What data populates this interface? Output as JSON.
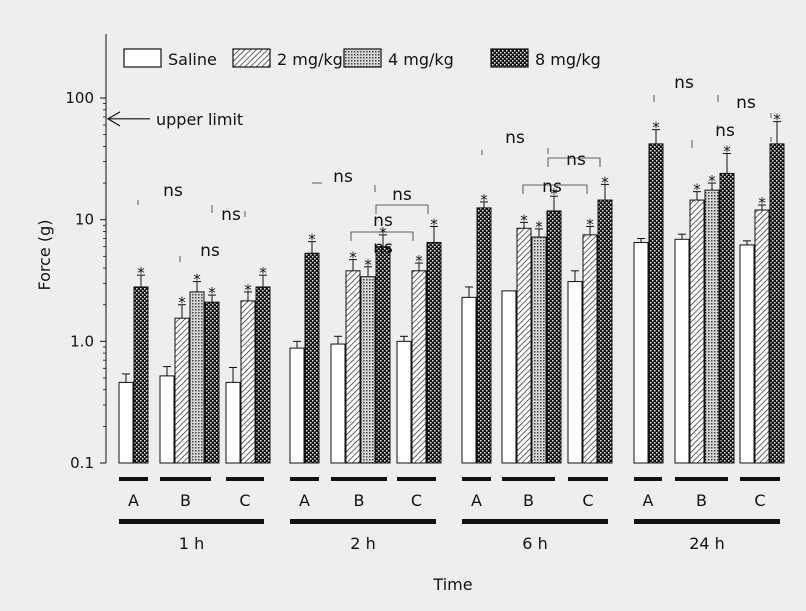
{
  "chart_data": {
    "type": "bar",
    "ylabel": "Force (g)",
    "xlabel": "Time",
    "yscale": "log",
    "ylim": [
      0.1,
      300
    ],
    "yticks": [
      {
        "value": 0.1,
        "label": "0.1"
      },
      {
        "value": 1,
        "label": "1.0"
      },
      {
        "value": 10,
        "label": "10"
      },
      {
        "value": 100,
        "label": "100"
      }
    ],
    "series": [
      {
        "name": "Saline",
        "pattern": "white"
      },
      {
        "name": "2 mg/kg",
        "pattern": "hatch"
      },
      {
        "name": "4 mg/kg",
        "pattern": "grid"
      },
      {
        "name": "8 mg/kg",
        "pattern": "check"
      }
    ],
    "upper_limit": {
      "value": 80,
      "label": "upper limit"
    },
    "significance_marker": "*",
    "ns_label": "ns",
    "time_points": [
      {
        "label": "1 h",
        "groups": [
          {
            "label": "A",
            "bars": [
              {
                "series": 0,
                "value": 0.46,
                "err": 0.08,
                "sig": false
              },
              {
                "series": 3,
                "value": 2.8,
                "err": 0.7,
                "sig": true
              }
            ]
          },
          {
            "label": "B",
            "bars": [
              {
                "series": 0,
                "value": 0.52,
                "err": 0.1,
                "sig": false
              },
              {
                "series": 1,
                "value": 1.55,
                "err": 0.45,
                "sig": true
              },
              {
                "series": 2,
                "value": 2.55,
                "err": 0.55,
                "sig": true
              },
              {
                "series": 3,
                "value": 2.1,
                "err": 0.3,
                "sig": true
              }
            ]
          },
          {
            "label": "C",
            "bars": [
              {
                "series": 0,
                "value": 0.46,
                "err": 0.15,
                "sig": false
              },
              {
                "series": 1,
                "value": 2.15,
                "err": 0.4,
                "sig": true
              },
              {
                "series": 3,
                "value": 2.8,
                "err": 0.7,
                "sig": true
              }
            ]
          }
        ]
      },
      {
        "label": "2 h",
        "groups": [
          {
            "label": "A",
            "bars": [
              {
                "series": 0,
                "value": 0.88,
                "err": 0.12,
                "sig": false
              },
              {
                "series": 3,
                "value": 5.3,
                "err": 1.3,
                "sig": true
              }
            ]
          },
          {
            "label": "B",
            "bars": [
              {
                "series": 0,
                "value": 0.95,
                "err": 0.15,
                "sig": false
              },
              {
                "series": 1,
                "value": 3.8,
                "err": 0.9,
                "sig": true
              },
              {
                "series": 2,
                "value": 3.4,
                "err": 0.7,
                "sig": true
              },
              {
                "series": 3,
                "value": 6.0,
                "err": 1.5,
                "sig": true
              }
            ]
          },
          {
            "label": "C",
            "bars": [
              {
                "series": 0,
                "value": 1.0,
                "err": 0.1,
                "sig": false
              },
              {
                "series": 1,
                "value": 3.8,
                "err": 0.6,
                "sig": true
              },
              {
                "series": 3,
                "value": 6.5,
                "err": 2.3,
                "sig": true
              }
            ]
          }
        ]
      },
      {
        "label": "6 h",
        "groups": [
          {
            "label": "A",
            "bars": [
              {
                "series": 0,
                "value": 2.3,
                "err": 0.5,
                "sig": false
              },
              {
                "series": 3,
                "value": 12.5,
                "err": 1.5,
                "sig": true
              }
            ]
          },
          {
            "label": "B",
            "bars": [
              {
                "series": 0,
                "value": 2.6,
                "err": 0.0,
                "sig": false
              },
              {
                "series": 1,
                "value": 8.5,
                "err": 1.0,
                "sig": true
              },
              {
                "series": 2,
                "value": 7.2,
                "err": 1.2,
                "sig": true
              },
              {
                "series": 3,
                "value": 11.8,
                "err": 3.8,
                "sig": true
              }
            ]
          },
          {
            "label": "C",
            "bars": [
              {
                "series": 0,
                "value": 3.1,
                "err": 0.7,
                "sig": false
              },
              {
                "series": 1,
                "value": 7.5,
                "err": 1.3,
                "sig": true
              },
              {
                "series": 3,
                "value": 14.5,
                "err": 5.0,
                "sig": true
              }
            ]
          }
        ]
      },
      {
        "label": "24 h",
        "groups": [
          {
            "label": "A",
            "bars": [
              {
                "series": 0,
                "value": 6.5,
                "err": 0.5,
                "sig": false
              },
              {
                "series": 3,
                "value": 42,
                "err": 13,
                "sig": true
              }
            ]
          },
          {
            "label": "B",
            "bars": [
              {
                "series": 0,
                "value": 6.9,
                "err": 0.7,
                "sig": false
              },
              {
                "series": 1,
                "value": 14.5,
                "err": 2.5,
                "sig": true
              },
              {
                "series": 2,
                "value": 17.5,
                "err": 2.5,
                "sig": true
              },
              {
                "series": 3,
                "value": 24,
                "err": 11,
                "sig": true
              }
            ]
          },
          {
            "label": "C",
            "bars": [
              {
                "series": 0,
                "value": 6.2,
                "err": 0.5,
                "sig": false
              },
              {
                "series": 1,
                "value": 12,
                "err": 1.2,
                "sig": true
              },
              {
                "series": 3,
                "value": 42,
                "err": 22,
                "sig": true
              }
            ]
          }
        ]
      }
    ],
    "legend_position": "top",
    "grid": false
  }
}
